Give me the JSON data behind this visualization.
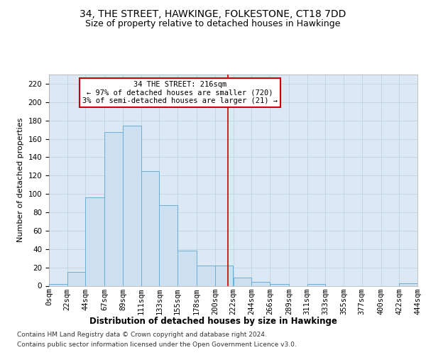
{
  "title": "34, THE STREET, HAWKINGE, FOLKESTONE, CT18 7DD",
  "subtitle": "Size of property relative to detached houses in Hawkinge",
  "xlabel": "Distribution of detached houses by size in Hawkinge",
  "ylabel": "Number of detached properties",
  "bar_color": "#cce0f0",
  "bar_edge_color": "#6aaed6",
  "background_color": "#ffffff",
  "plot_bg_color": "#dce9f5",
  "grid_color": "#b8cfe0",
  "annotation_text": "34 THE STREET: 216sqm\n← 97% of detached houses are smaller (720)\n3% of semi-detached houses are larger (21) →",
  "vline_x": 216,
  "vline_color": "#cc0000",
  "ann_box_color": "#cc0000",
  "bins": [
    0,
    22,
    44,
    67,
    89,
    111,
    133,
    155,
    178,
    200,
    222,
    244,
    266,
    289,
    311,
    333,
    355,
    377,
    400,
    422,
    444
  ],
  "bin_labels": [
    "0sqm",
    "22sqm",
    "44sqm",
    "67sqm",
    "89sqm",
    "111sqm",
    "133sqm",
    "155sqm",
    "178sqm",
    "200sqm",
    "222sqm",
    "244sqm",
    "266sqm",
    "289sqm",
    "311sqm",
    "333sqm",
    "355sqm",
    "377sqm",
    "400sqm",
    "422sqm",
    "444sqm"
  ],
  "counts": [
    2,
    15,
    96,
    167,
    174,
    125,
    88,
    38,
    22,
    22,
    9,
    4,
    2,
    0,
    2,
    0,
    0,
    0,
    0,
    3
  ],
  "ylim": [
    0,
    230
  ],
  "yticks": [
    0,
    20,
    40,
    60,
    80,
    100,
    120,
    140,
    160,
    180,
    200,
    220
  ],
  "footer_line1": "Contains HM Land Registry data © Crown copyright and database right 2024.",
  "footer_line2": "Contains public sector information licensed under the Open Government Licence v3.0.",
  "title_fontsize": 10,
  "subtitle_fontsize": 9,
  "xlabel_fontsize": 8.5,
  "ylabel_fontsize": 8,
  "tick_fontsize": 7.5,
  "annot_fontsize": 7.5,
  "footer_fontsize": 6.5
}
